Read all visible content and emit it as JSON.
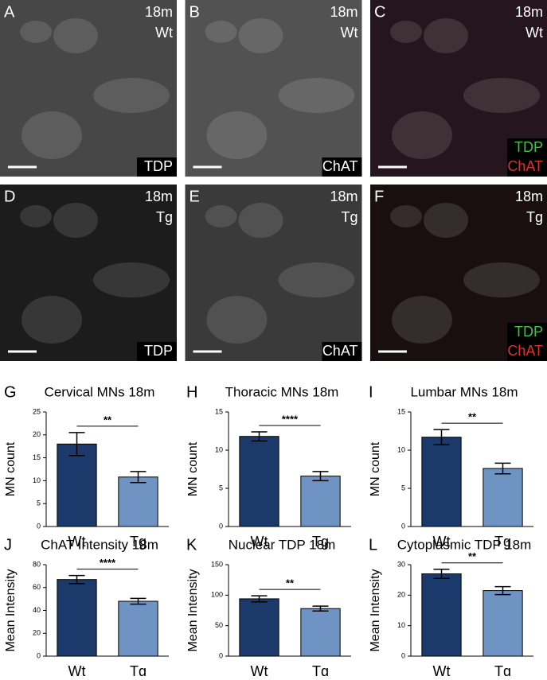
{
  "images": [
    {
      "letter": "A",
      "age": "18m",
      "genotype": "Wt",
      "stains": [
        {
          "text": "TDP",
          "color": "#ffffff"
        }
      ],
      "background": "#474747"
    },
    {
      "letter": "B",
      "age": "18m",
      "genotype": "Wt",
      "stains": [
        {
          "text": "ChAT",
          "color": "#ffffff"
        }
      ],
      "background": "#525252"
    },
    {
      "letter": "C",
      "age": "18m",
      "genotype": "Wt",
      "stains": [
        {
          "text": "TDP",
          "color": "#3ec43e"
        },
        {
          "text": "ChAT",
          "color": "#e0302a"
        }
      ],
      "background": "#24161c"
    },
    {
      "letter": "D",
      "age": "18m",
      "genotype": "Tg",
      "stains": [
        {
          "text": "TDP",
          "color": "#ffffff"
        }
      ],
      "background": "#1c1c1c"
    },
    {
      "letter": "E",
      "age": "18m",
      "genotype": "Tg",
      "stains": [
        {
          "text": "ChAT",
          "color": "#ffffff"
        }
      ],
      "background": "#3a3a3a"
    },
    {
      "letter": "F",
      "age": "18m",
      "genotype": "Tg",
      "stains": [
        {
          "text": "TDP",
          "color": "#3ec43e"
        },
        {
          "text": "ChAT",
          "color": "#e0302a"
        }
      ],
      "background": "#1a0f10"
    }
  ],
  "chart_data": [
    {
      "type": "bar",
      "label": "G",
      "title": "Cervical MNs 18m",
      "y_label": "MN count",
      "categories": [
        "Wt",
        "Tg"
      ],
      "values": [
        18,
        10.8
      ],
      "errors": [
        2.5,
        1.2
      ],
      "colors": [
        "#1b3a6b",
        "#6f93c2"
      ],
      "ylim": [
        0,
        25
      ],
      "yticks": [
        0,
        5,
        10,
        15,
        20,
        25
      ],
      "annotation": "**"
    },
    {
      "type": "bar",
      "label": "H",
      "title": "Thoracic MNs 18m",
      "y_label": "MN count",
      "categories": [
        "Wt",
        "Tg"
      ],
      "values": [
        11.8,
        6.6
      ],
      "errors": [
        0.6,
        0.6
      ],
      "colors": [
        "#1b3a6b",
        "#6f93c2"
      ],
      "ylim": [
        0,
        15
      ],
      "yticks": [
        0,
        5,
        10,
        15
      ],
      "annotation": "****"
    },
    {
      "type": "bar",
      "label": "I",
      "title": "Lumbar MNs 18m",
      "y_label": "MN count",
      "categories": [
        "Wt",
        "Tg"
      ],
      "values": [
        11.7,
        7.6
      ],
      "errors": [
        1.0,
        0.7
      ],
      "colors": [
        "#1b3a6b",
        "#6f93c2"
      ],
      "ylim": [
        0,
        15
      ],
      "yticks": [
        0,
        5,
        10,
        15
      ],
      "annotation": "**"
    },
    {
      "type": "bar",
      "label": "J",
      "title": "ChAT Intensity 18m",
      "y_label": "Mean Intensity",
      "categories": [
        "Wt",
        "Tg"
      ],
      "values": [
        67,
        48
      ],
      "errors": [
        3.5,
        2.5
      ],
      "colors": [
        "#1b3a6b",
        "#6f93c2"
      ],
      "ylim": [
        0,
        80
      ],
      "yticks": [
        0,
        20,
        40,
        60,
        80
      ],
      "annotation": "****"
    },
    {
      "type": "bar",
      "label": "K",
      "title": "Nuclear TDP 18m",
      "y_label": "Mean Intensity",
      "categories": [
        "Wt",
        "Tg"
      ],
      "values": [
        94,
        78
      ],
      "errors": [
        5,
        4
      ],
      "colors": [
        "#1b3a6b",
        "#6f93c2"
      ],
      "ylim": [
        0,
        150
      ],
      "yticks": [
        0,
        50,
        100,
        150
      ],
      "annotation": "**"
    },
    {
      "type": "bar",
      "label": "L",
      "title": "Cytoplasmic TDP 18m",
      "y_label": "Mean Intensity",
      "categories": [
        "Wt",
        "Tg"
      ],
      "values": [
        27,
        21.5
      ],
      "errors": [
        1.5,
        1.3
      ],
      "colors": [
        "#1b3a6b",
        "#6f93c2"
      ],
      "ylim": [
        0,
        30
      ],
      "yticks": [
        0,
        10,
        20,
        30
      ],
      "annotation": "**"
    }
  ]
}
